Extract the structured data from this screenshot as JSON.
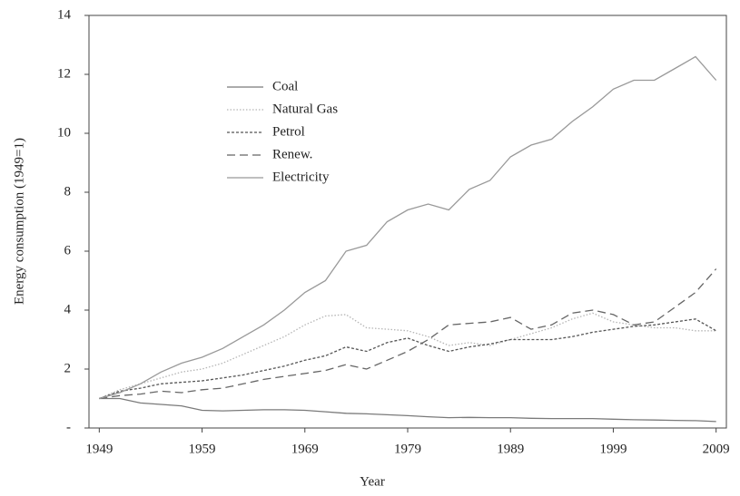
{
  "chart_data": {
    "type": "line",
    "x_label": "Year",
    "y_label": "Energy consumption (1949=1)",
    "x": [
      1949,
      1951,
      1953,
      1955,
      1957,
      1959,
      1961,
      1963,
      1965,
      1967,
      1969,
      1971,
      1973,
      1975,
      1977,
      1979,
      1981,
      1983,
      1985,
      1987,
      1989,
      1991,
      1993,
      1995,
      1997,
      1999,
      2001,
      2003,
      2005,
      2007,
      2009
    ],
    "series": [
      {
        "name": "Coal",
        "color": "#7a7a7a",
        "dash": "none",
        "values": [
          1,
          1.0,
          0.85,
          0.8,
          0.75,
          0.6,
          0.58,
          0.6,
          0.62,
          0.62,
          0.6,
          0.55,
          0.5,
          0.48,
          0.45,
          0.42,
          0.38,
          0.35,
          0.36,
          0.35,
          0.35,
          0.33,
          0.32,
          0.32,
          0.32,
          0.3,
          0.28,
          0.27,
          0.26,
          0.25,
          0.22
        ]
      },
      {
        "name": "Natural Gas",
        "color": "#b5b5b5",
        "dash": "1.5 2",
        "values": [
          1,
          1.3,
          1.5,
          1.7,
          1.9,
          2.0,
          2.2,
          2.5,
          2.8,
          3.1,
          3.5,
          3.8,
          3.85,
          3.4,
          3.35,
          3.3,
          3.1,
          2.8,
          2.9,
          2.8,
          3.0,
          3.2,
          3.4,
          3.7,
          3.9,
          3.6,
          3.5,
          3.4,
          3.4,
          3.3,
          3.3
        ]
      },
      {
        "name": "Petrol",
        "color": "#555555",
        "dash": "3 2",
        "values": [
          1,
          1.25,
          1.35,
          1.5,
          1.55,
          1.6,
          1.7,
          1.8,
          1.95,
          2.1,
          2.3,
          2.45,
          2.75,
          2.6,
          2.9,
          3.05,
          2.8,
          2.6,
          2.75,
          2.85,
          3.0,
          3.0,
          3.0,
          3.1,
          3.25,
          3.35,
          3.45,
          3.5,
          3.6,
          3.7,
          3.3
        ]
      },
      {
        "name": "Renew.",
        "color": "#666666",
        "dash": "9 5",
        "values": [
          1,
          1.1,
          1.15,
          1.25,
          1.2,
          1.3,
          1.35,
          1.5,
          1.65,
          1.75,
          1.85,
          1.95,
          2.15,
          2.0,
          2.3,
          2.6,
          3.0,
          3.5,
          3.55,
          3.6,
          3.75,
          3.35,
          3.5,
          3.9,
          4.0,
          3.85,
          3.5,
          3.6,
          4.1,
          4.6,
          5.4
        ]
      },
      {
        "name": "Electricity",
        "color": "#999999",
        "dash": "none",
        "values": [
          1,
          1.2,
          1.5,
          1.9,
          2.2,
          2.4,
          2.7,
          3.1,
          3.5,
          4.0,
          4.6,
          5.0,
          6.0,
          6.2,
          7.0,
          7.4,
          7.6,
          7.4,
          8.1,
          8.4,
          9.2,
          9.6,
          9.8,
          10.4,
          10.9,
          11.5,
          11.8,
          11.8,
          12.2,
          12.6,
          11.8
        ]
      }
    ],
    "xlim": [
      1948,
      2010
    ],
    "xticks": [
      1949,
      1959,
      1969,
      1979,
      1989,
      1999,
      2009
    ],
    "ylim": [
      0,
      14
    ],
    "yticks": [
      {
        "value": 0,
        "label": "-"
      },
      2,
      4,
      6,
      8,
      10,
      12,
      14
    ],
    "legend": "upper left"
  }
}
